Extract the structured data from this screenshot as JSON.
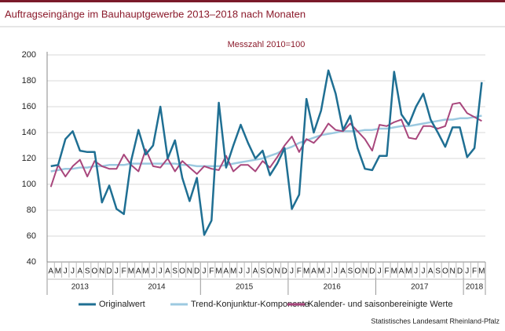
{
  "chart_data": {
    "type": "line",
    "title": "Auftragseingänge im Bauhauptgewerbe 2013–2018 nach Monaten",
    "subtitle": "Messzahl 2010=100",
    "source": "Statistisches Landesamt Rheinland-Pfalz",
    "categories": [
      "A",
      "M",
      "J",
      "J",
      "A",
      "S",
      "O",
      "N",
      "D",
      "J",
      "F",
      "M",
      "A",
      "M",
      "J",
      "J",
      "A",
      "S",
      "O",
      "N",
      "D",
      "J",
      "F",
      "M",
      "A",
      "M",
      "J",
      "J",
      "A",
      "S",
      "O",
      "N",
      "D",
      "J",
      "F",
      "M",
      "A",
      "M",
      "J",
      "J",
      "A",
      "S",
      "O",
      "N",
      "D",
      "J",
      "F",
      "M",
      "A",
      "M",
      "J",
      "J",
      "A",
      "S",
      "O",
      "N",
      "D",
      "J",
      "F",
      "M"
    ],
    "year_labels": [
      "2013",
      "2014",
      "2015",
      "2016",
      "2017",
      "2018"
    ],
    "ylim": [
      40,
      200
    ],
    "yticks": [
      40,
      60,
      80,
      100,
      120,
      140,
      160,
      180,
      200
    ],
    "grid": true,
    "series": [
      {
        "name": "Originalwert",
        "color": "#1f6f93",
        "width": 2.5,
        "values": [
          114,
          115,
          135,
          141,
          126,
          125,
          125,
          86,
          99,
          81,
          77,
          118,
          142,
          123,
          130,
          160,
          120,
          134,
          105,
          87,
          105,
          61,
          72,
          163,
          113,
          130,
          146,
          132,
          120,
          126,
          107,
          116,
          128,
          81,
          92,
          166,
          140,
          157,
          188,
          170,
          142,
          153,
          128,
          112,
          111,
          122,
          122,
          187,
          154,
          146,
          160,
          170,
          150,
          140,
          129,
          144,
          144,
          121,
          128,
          179
        ]
      },
      {
        "name": "Trend-Konjunktur-Komponente",
        "color": "#9cc9e0",
        "width": 2.5,
        "values": [
          110,
          111,
          112,
          112,
          113,
          113,
          114,
          114,
          115,
          115,
          115,
          116,
          116,
          116,
          116,
          116,
          116,
          116,
          115,
          115,
          114,
          114,
          114,
          114,
          115,
          116,
          117,
          118,
          119,
          120,
          122,
          124,
          127,
          129,
          132,
          134,
          136,
          138,
          139,
          140,
          141,
          141,
          141,
          142,
          142,
          143,
          143,
          144,
          145,
          145,
          146,
          147,
          148,
          149,
          150,
          150,
          151,
          151,
          152,
          153
        ]
      },
      {
        "name": "Kalender- und saisonbereinigte Werte",
        "color": "#a8467c",
        "width": 2,
        "values": [
          98,
          115,
          106,
          114,
          119,
          106,
          118,
          114,
          112,
          112,
          123,
          115,
          110,
          127,
          114,
          113,
          120,
          110,
          118,
          113,
          108,
          114,
          112,
          111,
          122,
          110,
          115,
          115,
          110,
          118,
          113,
          121,
          130,
          137,
          125,
          135,
          132,
          138,
          147,
          142,
          141,
          147,
          141,
          135,
          126,
          146,
          145,
          148,
          150,
          136,
          135,
          145,
          145,
          143,
          145,
          162,
          163,
          155,
          152,
          149
        ]
      }
    ]
  }
}
